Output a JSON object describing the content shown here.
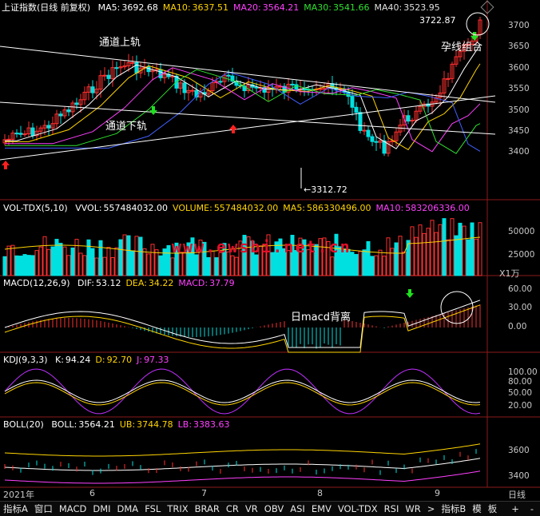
{
  "main": {
    "title": "上证指数(日线 前复权)",
    "ma": [
      {
        "label": "MA5:",
        "value": "3692.68",
        "color": "#ffffff"
      },
      {
        "label": "MA10:",
        "value": "3637.51",
        "color": "#ffd400"
      },
      {
        "label": "MA20:",
        "value": "3564.21",
        "color": "#ff40ff"
      },
      {
        "label": "MA30:",
        "value": "3541.66",
        "color": "#30e030"
      },
      {
        "label": "MA40:",
        "value": "3523.95",
        "color": "#e0e0e0"
      }
    ],
    "ticks": [
      "3700",
      "3650",
      "3600",
      "3550",
      "3500",
      "3450",
      "3400"
    ],
    "high_label": "3722.87",
    "low_label": "←3312.72",
    "annotations": {
      "upper_channel": "通道上轨",
      "lower_channel": "通道下轨",
      "pregnant": "孕线组合"
    },
    "watermark": "www.ewsbi.net.cn"
  },
  "vol": {
    "title": "VOL-TDX(5,10)",
    "items": [
      {
        "label": "VVOL:",
        "value": "557484032.00",
        "color": "#ffffff"
      },
      {
        "label": "VOLUME:",
        "value": "557484032.00",
        "color": "#ffd400"
      },
      {
        "label": "MA5:",
        "value": "586330496.00",
        "color": "#ffd400"
      },
      {
        "label": "MA10:",
        "value": "583206336.00",
        "color": "#ff40ff"
      }
    ],
    "ticks": [
      "50000",
      "25000"
    ],
    "unit": "X1万"
  },
  "macd": {
    "title": "MACD(12,26,9)",
    "items": [
      {
        "label": "DIF:",
        "value": "53.12",
        "color": "#ffffff"
      },
      {
        "label": "DEA:",
        "value": "34.22",
        "color": "#ffd400"
      },
      {
        "label": "MACD:",
        "value": "37.79",
        "color": "#ff40ff"
      }
    ],
    "ticks": [
      "60.00",
      "30.00",
      "0.00"
    ],
    "annotation": "日macd背离"
  },
  "kdj": {
    "title": "KDJ(9,3,3)",
    "items": [
      {
        "label": "K:",
        "value": "94.24",
        "color": "#ffffff"
      },
      {
        "label": "D:",
        "value": "92.70",
        "color": "#ffd400"
      },
      {
        "label": "J:",
        "value": "97.33",
        "color": "#ff40ff"
      }
    ],
    "ticks": [
      "100.00",
      "80.00",
      "50.00",
      "20.00"
    ]
  },
  "boll": {
    "title": "BOLL(20)",
    "items": [
      {
        "label": "BOLL:",
        "value": "3564.21",
        "color": "#ffffff"
      },
      {
        "label": "UB:",
        "value": "3744.78",
        "color": "#ffd400"
      },
      {
        "label": "LB:",
        "value": "3383.63",
        "color": "#ff40ff"
      }
    ],
    "ticks": [
      "3600",
      "3400"
    ]
  },
  "xaxis": {
    "labels": [
      {
        "text": "2021年",
        "x": 4
      },
      {
        "text": "6",
        "x": 112
      },
      {
        "text": "7",
        "x": 252
      },
      {
        "text": "8",
        "x": 397
      },
      {
        "text": "9",
        "x": 544
      }
    ],
    "period": "日线"
  },
  "tabs": [
    "指标A",
    "窗口",
    "MACD",
    "DMI",
    "DMA",
    "FSL",
    "TRIX",
    "BRAR",
    "CR",
    "VR",
    "OBV",
    "ASI",
    "EMV",
    "VOL-TDX",
    "RSI",
    "WR",
    ">",
    "指标B",
    "模",
    "板",
    "+",
    "-"
  ]
}
